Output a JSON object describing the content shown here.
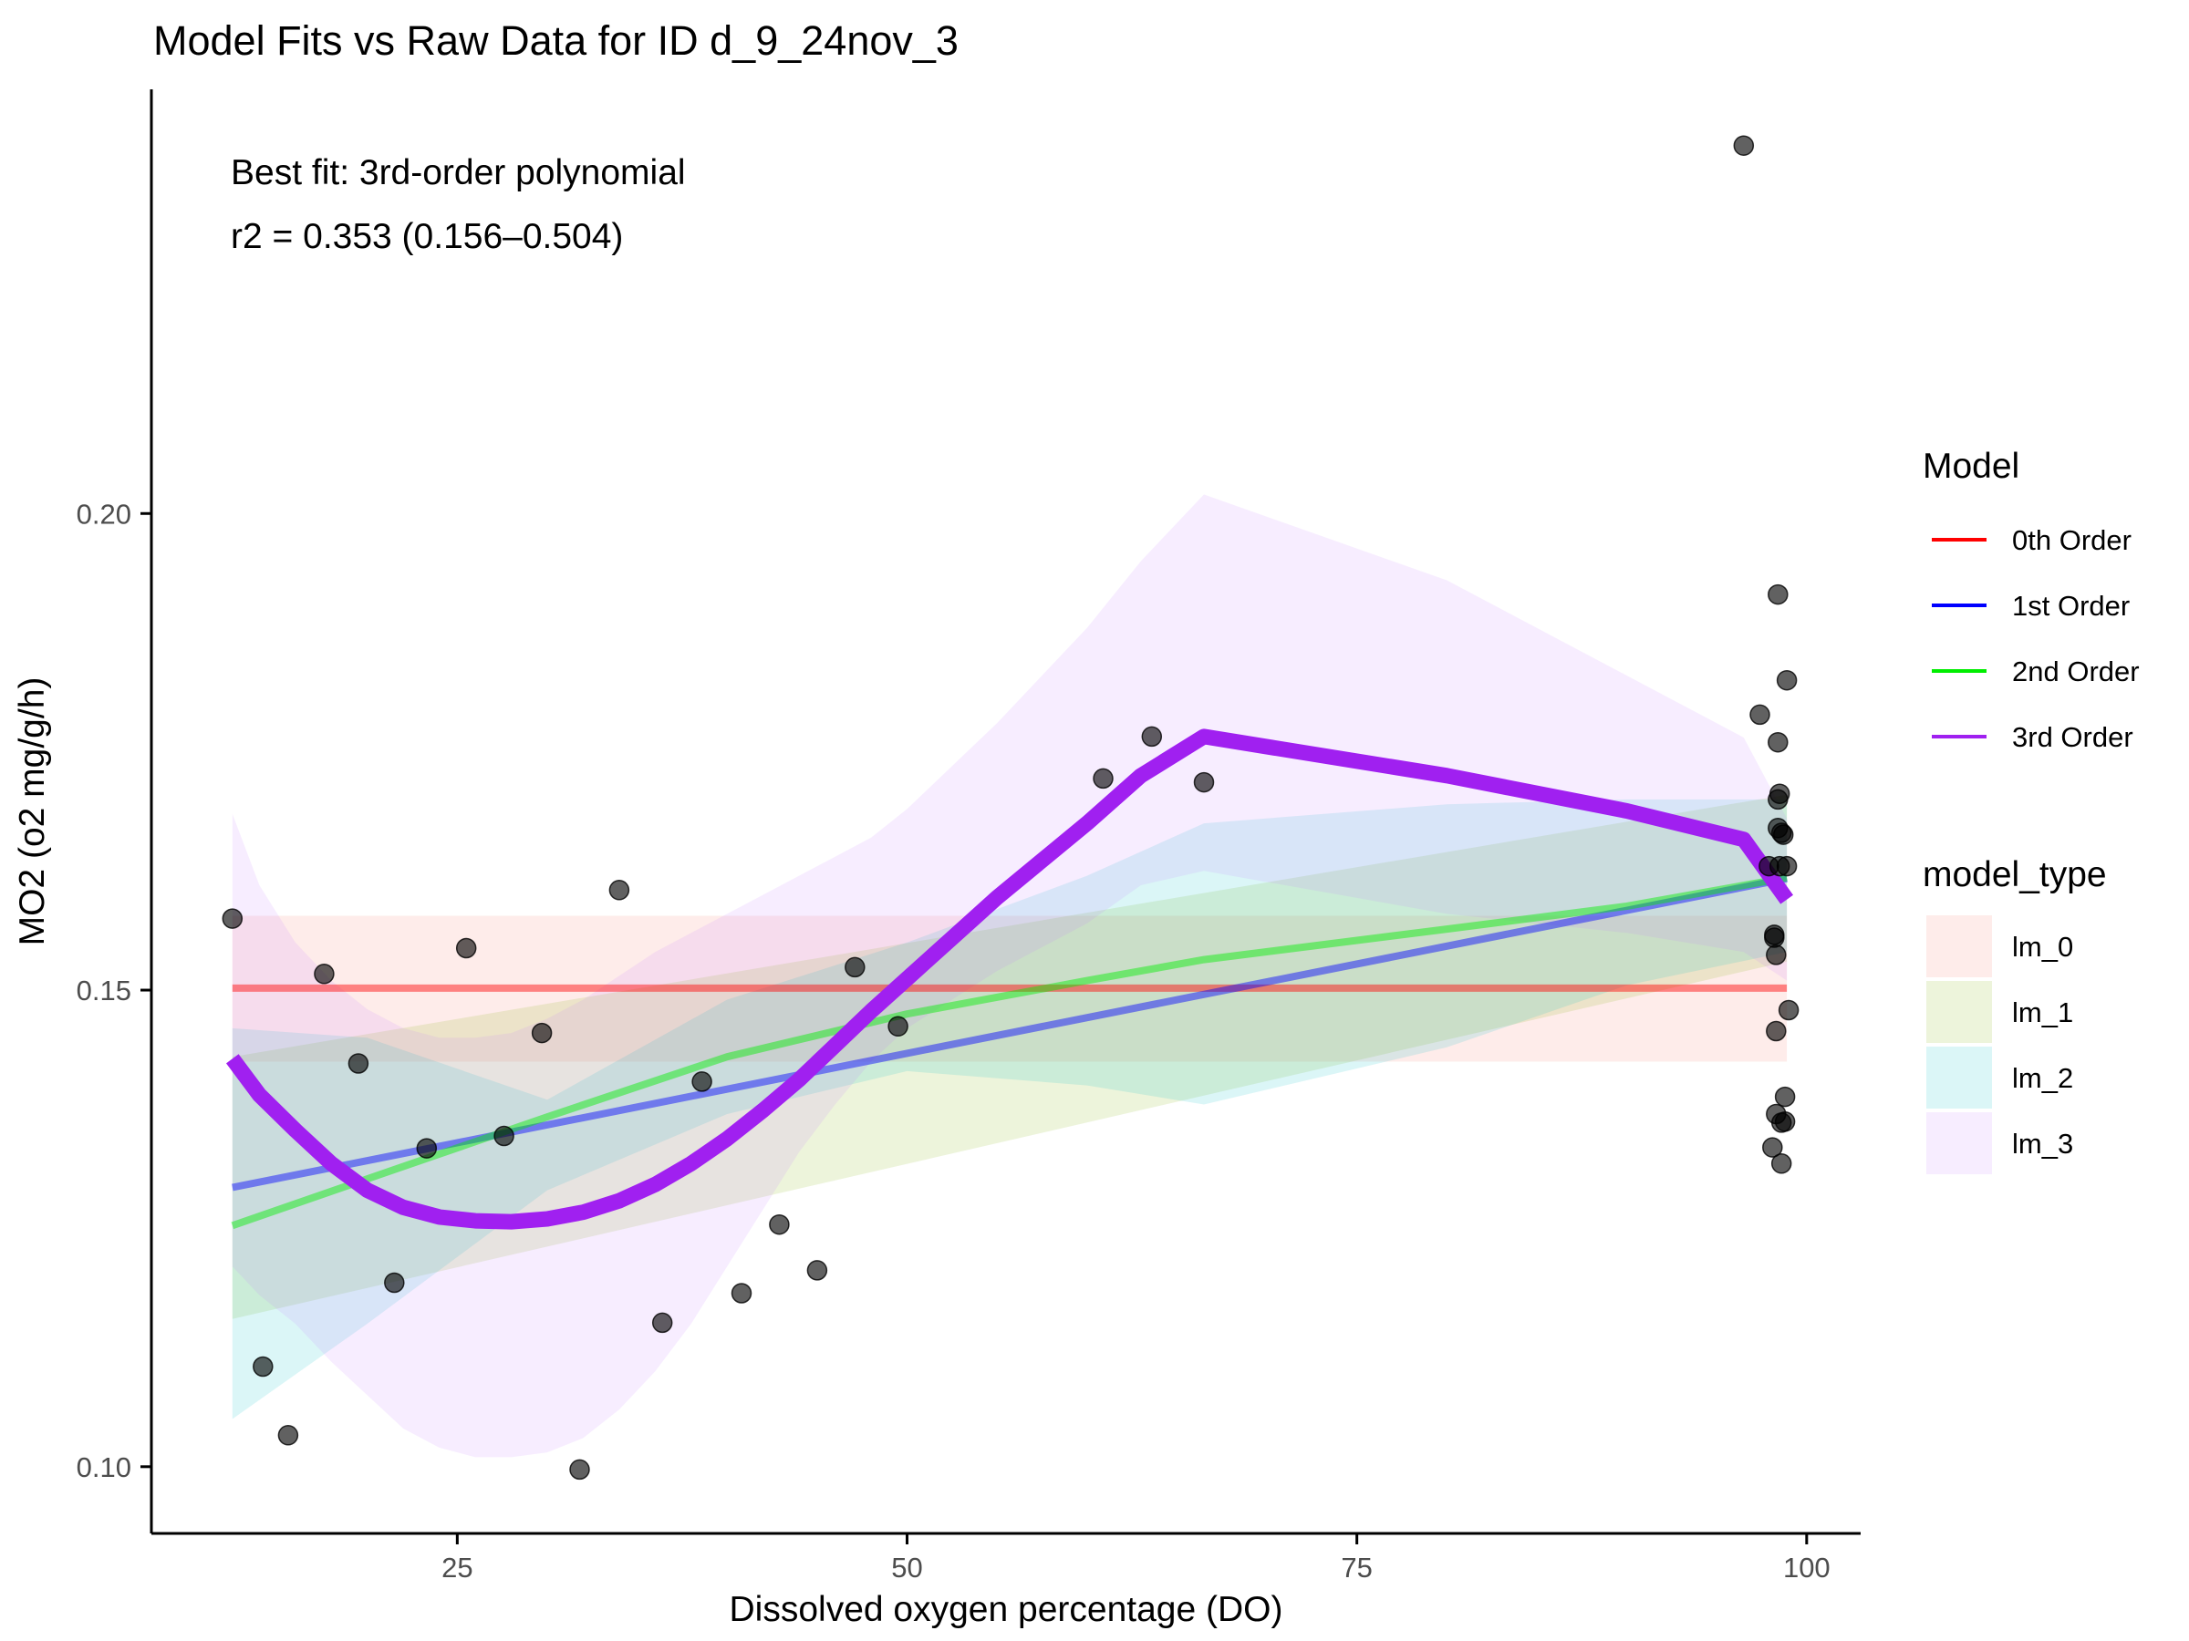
{
  "chart_data": {
    "type": "scatter",
    "title": "Model Fits vs Raw Data for ID d_9_24nov_3",
    "xlabel": "Dissolved oxygen percentage (DO)",
    "ylabel": "MO2 (o2 mg/g/h)",
    "xlim": [
      8,
      103
    ],
    "ylim": [
      0.093,
      0.2445
    ],
    "x_ticks": [
      25,
      50,
      75,
      100
    ],
    "x_tick_labels": [
      "25",
      "50",
      "75",
      "100"
    ],
    "y_ticks": [
      0.1,
      0.15,
      0.2
    ],
    "y_tick_labels": [
      "0.10",
      "0.15",
      "0.20"
    ],
    "grid": false,
    "annotations": [
      "Best fit: 3rd-order polynomial",
      "r2 = 0.353 (0.156–0.504)"
    ],
    "legend_model": {
      "title": "Model",
      "placement": "right",
      "entries": [
        {
          "label": "0th Order",
          "color": "#ff0000"
        },
        {
          "label": "1st Order",
          "color": "#0000ff"
        },
        {
          "label": "2nd Order",
          "color": "#00ee00"
        },
        {
          "label": "3rd Order",
          "color": "#a020f0"
        }
      ]
    },
    "legend_model_type": {
      "title": "model_type",
      "placement": "right",
      "entries": [
        {
          "label": "lm_0",
          "color": "#f8766d"
        },
        {
          "label": "lm_1",
          "color": "#7cae00"
        },
        {
          "label": "lm_2",
          "color": "#00bfc4"
        },
        {
          "label": "lm_3",
          "color": "#c77cff"
        }
      ]
    },
    "points": [
      {
        "x": 12.5,
        "y": 0.1575
      },
      {
        "x": 14.2,
        "y": 0.1105
      },
      {
        "x": 15.6,
        "y": 0.1033
      },
      {
        "x": 17.6,
        "y": 0.1517
      },
      {
        "x": 19.5,
        "y": 0.1423
      },
      {
        "x": 21.5,
        "y": 0.1193
      },
      {
        "x": 23.3,
        "y": 0.1334
      },
      {
        "x": 25.5,
        "y": 0.1544
      },
      {
        "x": 27.6,
        "y": 0.1347
      },
      {
        "x": 29.7,
        "y": 0.1455
      },
      {
        "x": 31.8,
        "y": 0.0997
      },
      {
        "x": 34.0,
        "y": 0.1605
      },
      {
        "x": 36.4,
        "y": 0.1151
      },
      {
        "x": 38.6,
        "y": 0.1404
      },
      {
        "x": 40.8,
        "y": 0.1182
      },
      {
        "x": 42.9,
        "y": 0.1254
      },
      {
        "x": 45.0,
        "y": 0.1206
      },
      {
        "x": 47.1,
        "y": 0.1524
      },
      {
        "x": 49.5,
        "y": 0.1462
      },
      {
        "x": 60.9,
        "y": 0.1722
      },
      {
        "x": 63.6,
        "y": 0.1766
      },
      {
        "x": 66.5,
        "y": 0.1718
      },
      {
        "x": 96.5,
        "y": 0.2386
      },
      {
        "x": 97.4,
        "y": 0.1789
      },
      {
        "x": 97.9,
        "y": 0.163
      },
      {
        "x": 98.1,
        "y": 0.1335
      },
      {
        "x": 98.2,
        "y": 0.1555
      },
      {
        "x": 98.2,
        "y": 0.1558
      },
      {
        "x": 98.3,
        "y": 0.1537
      },
      {
        "x": 98.3,
        "y": 0.1457
      },
      {
        "x": 98.3,
        "y": 0.137
      },
      {
        "x": 98.4,
        "y": 0.167
      },
      {
        "x": 98.4,
        "y": 0.17
      },
      {
        "x": 98.4,
        "y": 0.176
      },
      {
        "x": 98.4,
        "y": 0.1915
      },
      {
        "x": 98.5,
        "y": 0.163
      },
      {
        "x": 98.5,
        "y": 0.1706
      },
      {
        "x": 98.6,
        "y": 0.1318
      },
      {
        "x": 98.6,
        "y": 0.1361
      },
      {
        "x": 98.6,
        "y": 0.1665
      },
      {
        "x": 98.7,
        "y": 0.1663
      },
      {
        "x": 98.8,
        "y": 0.1388
      },
      {
        "x": 98.8,
        "y": 0.1362
      },
      {
        "x": 98.9,
        "y": 0.163
      },
      {
        "x": 98.9,
        "y": 0.1825
      },
      {
        "x": 99.0,
        "y": 0.1479
      }
    ],
    "series": [
      {
        "name": "0th Order",
        "fit_type": "lm_0",
        "x": [
          12.5,
          98.9
        ],
        "y": [
          0.1502,
          0.1502
        ],
        "ci_lower": [
          0.1425,
          0.1425
        ],
        "ci_upper": [
          0.1578,
          0.1578
        ]
      },
      {
        "name": "1st Order",
        "fit_type": "lm_1",
        "x": [
          12.5,
          98.9
        ],
        "y": [
          0.1293,
          0.1617
        ],
        "ci_lower": [
          0.1155,
          0.153
        ],
        "ci_upper": [
          0.143,
          0.1705
        ]
      },
      {
        "name": "2nd Order",
        "fit_type": "lm_2",
        "x": [
          12.5,
          20,
          30,
          40,
          50,
          60,
          66.5,
          80,
          90,
          98.9
        ],
        "y": [
          0.1253,
          0.1302,
          0.1367,
          0.143,
          0.1475,
          0.151,
          0.1532,
          0.1564,
          0.1588,
          0.1618
        ],
        "ci_lower": [
          0.105,
          0.115,
          0.129,
          0.137,
          0.1415,
          0.14,
          0.138,
          0.144,
          0.1505,
          0.154
        ],
        "ci_upper": [
          0.146,
          0.145,
          0.1385,
          0.149,
          0.155,
          0.162,
          0.1675,
          0.1695,
          0.17,
          0.17
        ]
      },
      {
        "name": "3rd Order",
        "fit_type": "lm_3",
        "x": [
          12.5,
          14,
          16,
          18,
          20,
          22,
          24,
          26,
          28,
          30,
          32,
          34,
          36,
          38,
          40,
          42,
          44,
          46,
          48,
          50,
          55,
          60,
          63,
          66.5,
          80,
          90,
          96.5,
          98.9
        ],
        "y": [
          0.1428,
          0.139,
          0.1353,
          0.1318,
          0.129,
          0.1272,
          0.1262,
          0.1258,
          0.1257,
          0.126,
          0.1267,
          0.1279,
          0.1296,
          0.1318,
          0.1344,
          0.1374,
          0.1406,
          0.1442,
          0.1478,
          0.1512,
          0.1597,
          0.1675,
          0.1725,
          0.1766,
          0.1725,
          0.1688,
          0.1658,
          0.1595
        ],
        "ci_lower": [
          0.121,
          0.118,
          0.115,
          0.111,
          0.1075,
          0.104,
          0.102,
          0.101,
          0.101,
          0.1015,
          0.103,
          0.106,
          0.11,
          0.115,
          0.121,
          0.127,
          0.133,
          0.138,
          0.1425,
          0.146,
          0.152,
          0.157,
          0.161,
          0.1625,
          0.158,
          0.156,
          0.154,
          0.151
        ],
        "ci_upper": [
          0.1685,
          0.161,
          0.155,
          0.151,
          0.148,
          0.146,
          0.145,
          0.145,
          0.1455,
          0.147,
          0.149,
          0.1515,
          0.154,
          0.156,
          0.158,
          0.16,
          0.162,
          0.164,
          0.166,
          0.169,
          0.178,
          0.188,
          0.195,
          0.202,
          0.193,
          0.183,
          0.1765,
          0.168
        ]
      }
    ]
  }
}
